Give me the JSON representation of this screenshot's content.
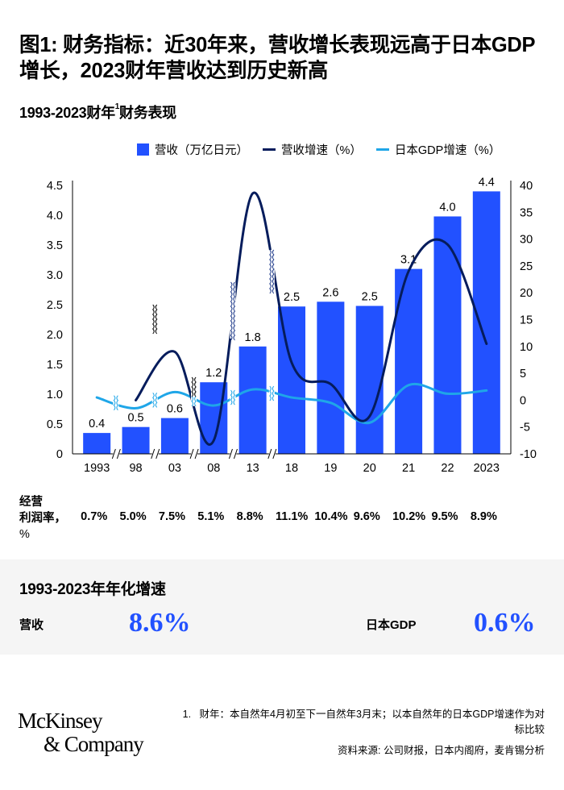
{
  "title": "图1: 财务指标：近30年来，营收增长表现远高于日本GDP增长，2023财年营收达到历史新高",
  "subtitle": {
    "text": "1993-2023财年",
    "sup": "1",
    "suffix": "财务表现"
  },
  "legend": [
    {
      "label": "营收（万亿日元）",
      "color": "#2251FF",
      "kind": "bar"
    },
    {
      "label": "营收增速（%）",
      "color": "#051C5C",
      "kind": "line"
    },
    {
      "label": "日本GDP增速（%）",
      "color": "#1FA6E8",
      "kind": "line"
    }
  ],
  "chart_data": {
    "type": "bar",
    "title": "1993-2023财年财务表现",
    "categories": [
      "1993",
      "98",
      "03",
      "08",
      "13",
      "18",
      "19",
      "20",
      "21",
      "22",
      "2023"
    ],
    "series": [
      {
        "name": "营收（万亿日元）",
        "type": "bar",
        "axis": "left",
        "color": "#2251FF",
        "values": [
          0.35,
          0.45,
          0.6,
          1.2,
          1.8,
          2.47,
          2.55,
          2.48,
          3.1,
          3.98,
          4.4
        ],
        "labels": [
          "0.4",
          "0.5",
          "0.6",
          "1.2",
          "1.8",
          "2.5",
          "2.6",
          "2.5",
          "3.1",
          "4.0",
          "4.4"
        ]
      },
      {
        "name": "营收增速（%）",
        "type": "line",
        "axis": "right",
        "color": "#051C5C",
        "values": [
          null,
          0,
          9,
          -7.5,
          38.5,
          7,
          3,
          -3,
          24,
          29,
          10.5
        ]
      },
      {
        "name": "日本GDP增速（%）",
        "type": "line",
        "axis": "right",
        "color": "#1FA6E8",
        "values": [
          0.5,
          -1.5,
          1.5,
          -1,
          2,
          0.5,
          -0.5,
          -4.2,
          2.8,
          1.2,
          1.8
        ]
      }
    ],
    "left_axis": {
      "ylim": [
        0,
        4.5
      ],
      "ticks": [
        "0",
        "0.5",
        "1.0",
        "1.5",
        "2.0",
        "2.5",
        "3.0",
        "3.5",
        "4.0",
        "4.5"
      ]
    },
    "right_axis": {
      "ylim": [
        -10,
        40
      ],
      "ticks": [
        "-10",
        "-5",
        "0",
        "5",
        "10",
        "15",
        "20",
        "25",
        "30",
        "35",
        "40"
      ]
    },
    "axis_breaks_after": [
      "1993",
      "98",
      "03",
      "08",
      "13"
    ],
    "grid": false,
    "legend_position": "top"
  },
  "operating_margin": {
    "label_line1": "经营",
    "label_line2": "利润率，",
    "label_line3": "%",
    "values": [
      "0.7%",
      "5.0%",
      "7.5%",
      "5.1%",
      "8.8%",
      "11.1%",
      "10.4%",
      "9.6%",
      "10.2%",
      "9.5%",
      "8.9%"
    ]
  },
  "summary": {
    "heading": "1993-2023年年化增速",
    "revenue_label": "营收",
    "revenue_value": "8.6%",
    "gdp_label": "日本GDP",
    "gdp_value": "0.6%"
  },
  "footer": {
    "logo_line1": "McKinsey",
    "logo_line2": "& Company",
    "note": "1.   财年：本自然年4月初至下一自然年3月末；以本自然年的日本GDP增速作为对标比较",
    "source": "资料来源: 公司财报，日本内阁府，麦肯锡分析"
  }
}
